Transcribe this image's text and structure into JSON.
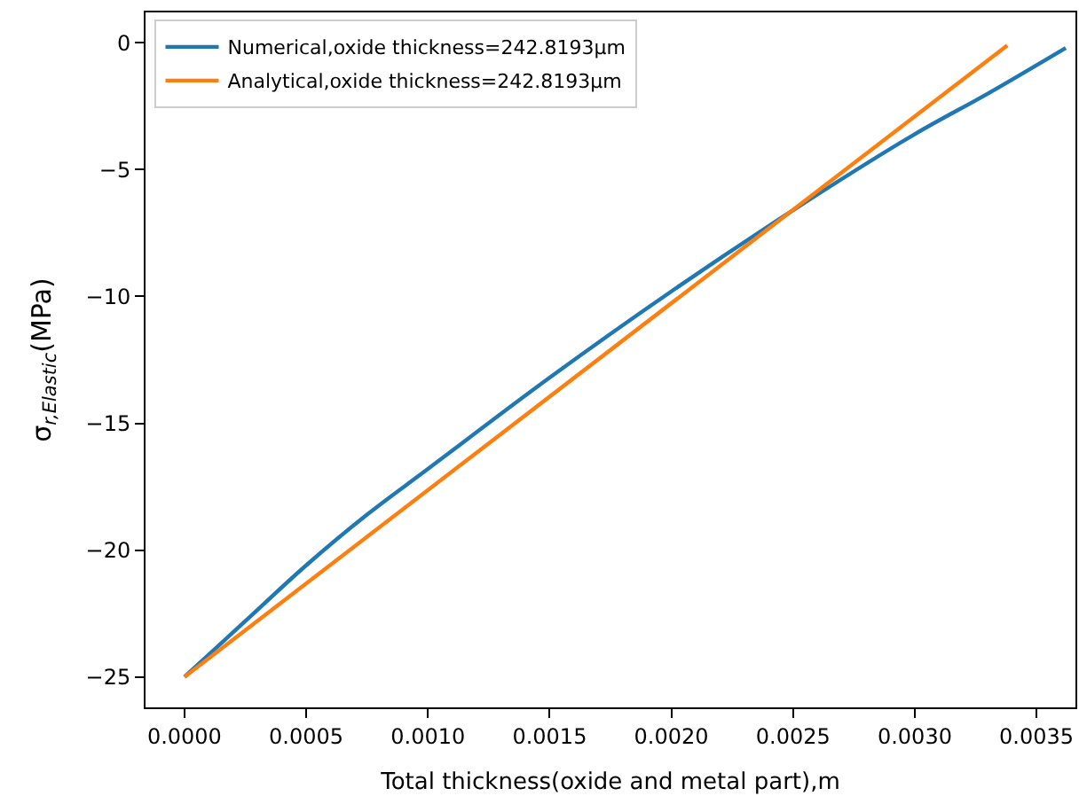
{
  "chart_data": {
    "type": "line",
    "xlabel": "Total thickness(oxide and metal part),m",
    "ylabel": "σ$_{r,Elastic}$(MPa)",
    "series": [
      {
        "name": "Numerical,oxide thickness=242.8193µm",
        "color": "#1f77b4",
        "x": [
          0,
          0.00025,
          0.0005,
          0.00075,
          0.001,
          0.0015,
          0.002,
          0.0025,
          0.003,
          0.0033,
          0.00362
        ],
        "values": [
          -25,
          -22.8,
          -20.6,
          -18.6,
          -16.8,
          -13.2,
          -9.8,
          -6.6,
          -3.6,
          -2.0,
          -0.2
        ]
      },
      {
        "name": "Analytical,oxide thickness=242.8193µm",
        "color": "#ff7f0e",
        "x": [
          0,
          0.00338
        ],
        "values": [
          -25,
          -0.1
        ]
      }
    ],
    "xlim": [
      -0.00016,
      0.00366
    ],
    "ylim": [
      -26.2,
      1.2
    ],
    "xticks": [
      {
        "value": 0,
        "label": "0.0000"
      },
      {
        "value": 0.0005,
        "label": "0.0005"
      },
      {
        "value": 0.001,
        "label": "0.0010"
      },
      {
        "value": 0.0015,
        "label": "0.0015"
      },
      {
        "value": 0.002,
        "label": "0.0020"
      },
      {
        "value": 0.0025,
        "label": "0.0025"
      },
      {
        "value": 0.003,
        "label": "0.0030"
      },
      {
        "value": 0.0035,
        "label": "0.0035"
      }
    ],
    "yticks": [
      {
        "value": -25,
        "label": "−25"
      },
      {
        "value": -20,
        "label": "−20"
      },
      {
        "value": -15,
        "label": "−15"
      },
      {
        "value": -10,
        "label": "−10"
      },
      {
        "value": -5,
        "label": "−5"
      },
      0
    ],
    "legend": "top left",
    "marker": "none",
    "line_style": "solid"
  }
}
